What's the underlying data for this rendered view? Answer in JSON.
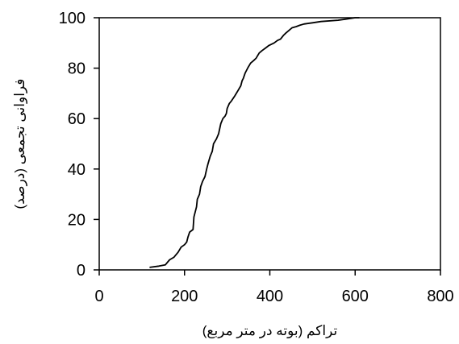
{
  "chart_data": {
    "type": "line",
    "title": "",
    "xlabel": "تراکم (بوته در متر مربع)",
    "ylabel": "فراوانی تجمعی (درصد)",
    "xlim": [
      0,
      800
    ],
    "ylim": [
      0,
      100
    ],
    "xticks": [
      0,
      200,
      400,
      600,
      800
    ],
    "yticks": [
      0,
      20,
      40,
      60,
      80,
      100
    ],
    "xtick_labels": [
      "0",
      "200",
      "400",
      "600",
      "800"
    ],
    "ytick_labels": [
      "0",
      "20",
      "40",
      "60",
      "80",
      "100"
    ],
    "grid": false,
    "legend": "none",
    "line_color": "#000000",
    "series": [
      {
        "x": [
          118,
          140,
          155,
          165,
          175,
          185,
          192,
          200,
          205,
          208,
          212,
          220,
          222,
          228,
          230,
          235,
          238,
          242,
          248,
          252,
          255,
          260,
          265,
          268,
          275,
          280,
          285,
          290,
          295,
          298,
          300,
          305,
          310,
          318,
          325,
          332,
          335,
          338,
          342,
          348,
          355,
          362,
          368,
          375,
          382,
          390,
          398,
          410,
          418,
          425,
          432,
          438,
          445,
          452,
          462,
          470,
          480,
          500,
          520,
          560,
          580,
          600,
          610
        ],
        "y": [
          1,
          1.5,
          2,
          4,
          5,
          7,
          9,
          10,
          11,
          13,
          15,
          16,
          21,
          25,
          28,
          30,
          33,
          35,
          37,
          40,
          42,
          45,
          47,
          50,
          52,
          54,
          58,
          60,
          61,
          62,
          64,
          66,
          67,
          69,
          71,
          73,
          75,
          76,
          78,
          80,
          82,
          83,
          84,
          86,
          87,
          88,
          89,
          90,
          91,
          91.5,
          93,
          94,
          95,
          96,
          96.5,
          97,
          97.5,
          98,
          98.5,
          99,
          99.5,
          100,
          100
        ]
      }
    ]
  }
}
